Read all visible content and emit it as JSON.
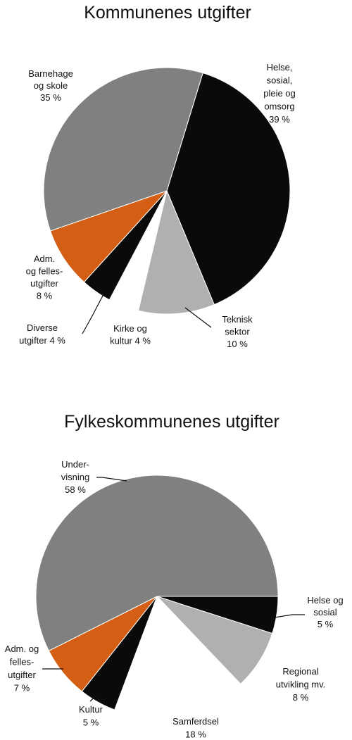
{
  "chart_data": [
    {
      "type": "pie",
      "title": "Kommunenes utgifter",
      "slices": [
        {
          "label": [
            "Helse,",
            "sosial,",
            "pleie og",
            "omsorg",
            "39 %"
          ],
          "value": 39,
          "color": "#0a0a0a"
        },
        {
          "label": [
            "Teknisk",
            "sektor",
            "10 %"
          ],
          "value": 10,
          "color": "#b0b0b0"
        },
        {
          "label": [
            "Kirke og",
            "kultur 4 %"
          ],
          "value": 4,
          "color": "#ffffff"
        },
        {
          "label": [
            "Diverse",
            "utgifter 4 %"
          ],
          "value": 4,
          "color": "#0a0a0a"
        },
        {
          "label": [
            "Adm.",
            "og felles-",
            "utgifter",
            "8 %"
          ],
          "value": 8,
          "color": "#d45f14"
        },
        {
          "label": [
            "Barnehage",
            "og skole",
            "35 %"
          ],
          "value": 35,
          "color": "#808080"
        }
      ]
    },
    {
      "type": "pie",
      "title": "Fylkeskommunenes utgifter",
      "slices": [
        {
          "label": [
            "Helse og",
            "sosial",
            "5 %"
          ],
          "value": 5,
          "color": "#0a0a0a"
        },
        {
          "label": [
            "Regional",
            "utvikling mv.",
            "8 %"
          ],
          "value": 8,
          "color": "#b0b0b0"
        },
        {
          "label": [
            "Samferdsel",
            "18 %"
          ],
          "value": 18,
          "color": "#ffffff"
        },
        {
          "label": [
            "Kultur",
            "5 %"
          ],
          "value": 5,
          "color": "#0a0a0a"
        },
        {
          "label": [
            "Adm. og",
            "felles-",
            "utgifter",
            "7 %"
          ],
          "value": 7,
          "color": "#d45f14"
        },
        {
          "label": [
            "Under-",
            "visning",
            "58 %"
          ],
          "value": 58,
          "color": "#808080"
        }
      ]
    }
  ]
}
